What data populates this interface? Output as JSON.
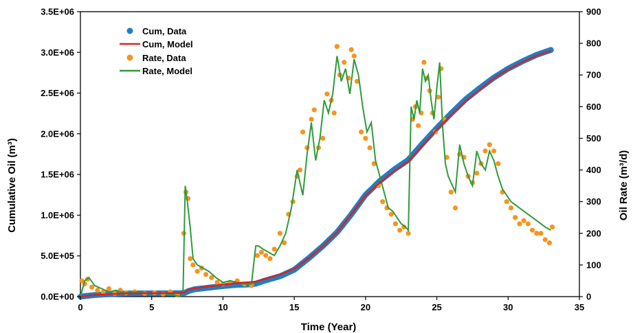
{
  "chart_data": {
    "type": "line",
    "title": "",
    "xlabel": "Time (Year)",
    "ylabel_left": "Cumulative Oil (m³)",
    "ylabel_right": "Oil Rate (m³/d)",
    "xlim": [
      0,
      35
    ],
    "ylim_left": [
      0,
      3500000
    ],
    "ylim_right": [
      0,
      900
    ],
    "x_ticks": [
      "0",
      "5",
      "10",
      "15",
      "20",
      "25",
      "30",
      "35"
    ],
    "y_left_ticks": [
      "0.0E+00",
      "5.0E+05",
      "1.0E+06",
      "1.5E+06",
      "2.0E+06",
      "2.5E+06",
      "3.0E+06",
      "3.5E+06"
    ],
    "y_right_ticks": [
      "0",
      "100",
      "200",
      "300",
      "400",
      "500",
      "600",
      "700",
      "800",
      "900"
    ],
    "grid": false,
    "legend_position": "top-left",
    "colors": {
      "cum_data": "#1f7fc4",
      "cum_model": "#e02020",
      "rate_data": "#f7941d",
      "rate_model": "#2e9a3a"
    },
    "series": [
      {
        "name": "Cum, Data",
        "axis": "left",
        "style": "thick-points",
        "x": [
          0,
          1,
          2,
          3,
          4,
          5,
          6,
          7,
          7.3,
          7.6,
          8,
          9,
          10,
          11,
          12,
          12.3,
          13,
          14,
          15,
          16,
          17,
          18,
          19,
          20,
          21,
          22,
          23,
          24,
          25,
          26,
          27,
          28,
          29,
          30,
          31,
          32,
          33
        ],
        "y": [
          0,
          20000,
          30000,
          38000,
          40000,
          40000,
          40000,
          42000,
          45000,
          70000,
          90000,
          110000,
          130000,
          145000,
          150000,
          160000,
          200000,
          250000,
          330000,
          470000,
          620000,
          790000,
          1010000,
          1250000,
          1420000,
          1560000,
          1680000,
          1880000,
          2070000,
          2250000,
          2420000,
          2560000,
          2690000,
          2800000,
          2890000,
          2970000,
          3030000
        ]
      },
      {
        "name": "Cum, Model",
        "axis": "left",
        "style": "line",
        "x": [
          0,
          1,
          2,
          3,
          4,
          5,
          6,
          7,
          7.3,
          7.6,
          8,
          9,
          10,
          11,
          12,
          12.3,
          13,
          14,
          15,
          16,
          17,
          18,
          19,
          20,
          21,
          22,
          23,
          24,
          25,
          26,
          27,
          28,
          29,
          30,
          31,
          32,
          33
        ],
        "y": [
          0,
          20000,
          30000,
          38000,
          40000,
          42000,
          43000,
          45000,
          50000,
          85000,
          100000,
          125000,
          145000,
          165000,
          180000,
          185000,
          220000,
          270000,
          340000,
          470000,
          620000,
          790000,
          1010000,
          1240000,
          1400000,
          1540000,
          1660000,
          1860000,
          2050000,
          2230000,
          2400000,
          2540000,
          2680000,
          2790000,
          2880000,
          2960000,
          3020000
        ]
      },
      {
        "name": "Rate, Data",
        "axis": "right",
        "style": "points",
        "x": [
          0.1,
          0.3,
          0.5,
          0.8,
          1.2,
          1.6,
          2.0,
          2.4,
          2.8,
          3.2,
          3.8,
          4.5,
          5.2,
          5.8,
          6.3,
          6.8,
          7.25,
          7.4,
          7.55,
          7.7,
          7.9,
          8.2,
          8.5,
          8.8,
          9.2,
          9.6,
          10.0,
          10.5,
          11.0,
          11.5,
          12.0,
          12.4,
          12.7,
          13.0,
          13.3,
          13.6,
          14.0,
          14.3,
          14.6,
          14.9,
          15.2,
          15.4,
          15.6,
          15.9,
          16.2,
          16.4,
          16.7,
          17.0,
          17.3,
          17.6,
          17.8,
          18.0,
          18.2,
          18.5,
          18.8,
          19.0,
          19.2,
          19.4,
          19.7,
          20.0,
          20.3,
          20.6,
          20.9,
          21.2,
          21.5,
          21.8,
          22.1,
          22.4,
          22.7,
          23.0,
          23.3,
          23.5,
          23.7,
          23.9,
          24.1,
          24.3,
          24.5,
          24.7,
          24.9,
          25.1,
          25.3,
          25.5,
          25.7,
          26.0,
          26.3,
          26.6,
          26.9,
          27.2,
          27.5,
          27.8,
          28.1,
          28.4,
          28.7,
          29.0,
          29.3,
          29.6,
          29.9,
          30.2,
          30.5,
          30.8,
          31.1,
          31.4,
          31.7,
          32.0,
          32.3,
          32.6,
          32.9,
          33.1
        ],
        "y": [
          50,
          40,
          55,
          30,
          20,
          15,
          25,
          10,
          20,
          12,
          15,
          10,
          12,
          8,
          15,
          5,
          200,
          330,
          310,
          120,
          100,
          80,
          90,
          70,
          60,
          45,
          40,
          45,
          50,
          40,
          35,
          130,
          140,
          130,
          120,
          150,
          200,
          170,
          260,
          300,
          380,
          400,
          520,
          470,
          560,
          590,
          470,
          500,
          640,
          620,
          580,
          790,
          700,
          740,
          690,
          780,
          760,
          680,
          520,
          500,
          470,
          420,
          350,
          300,
          280,
          260,
          230,
          210,
          220,
          200,
          560,
          600,
          540,
          580,
          740,
          690,
          650,
          580,
          520,
          630,
          720,
          560,
          440,
          330,
          280,
          450,
          440,
          380,
          360,
          390,
          420,
          460,
          480,
          460,
          420,
          330,
          300,
          280,
          250,
          230,
          240,
          230,
          210,
          200,
          200,
          180,
          170,
          220
        ]
      },
      {
        "name": "Rate, Model",
        "axis": "right",
        "style": "line",
        "x": [
          0,
          0.3,
          0.6,
          1.0,
          1.5,
          2.0,
          2.5,
          3.0,
          4.0,
          5.0,
          6.0,
          7.0,
          7.2,
          7.35,
          7.5,
          7.7,
          7.9,
          8.2,
          8.6,
          9.0,
          9.5,
          10.0,
          10.5,
          11.0,
          11.5,
          12.0,
          12.3,
          12.5,
          12.8,
          13.2,
          13.6,
          14.0,
          14.4,
          14.8,
          15.2,
          15.6,
          15.9,
          16.2,
          16.5,
          16.8,
          17.1,
          17.4,
          17.7,
          18.0,
          18.3,
          18.6,
          18.9,
          19.2,
          19.5,
          19.8,
          20.1,
          20.4,
          20.7,
          21.0,
          21.3,
          21.6,
          21.9,
          22.2,
          22.5,
          22.8,
          23.0,
          23.2,
          23.4,
          23.6,
          23.8,
          24.0,
          24.2,
          24.4,
          24.6,
          24.8,
          25.0,
          25.2,
          25.4,
          25.6,
          25.8,
          26.0,
          26.3,
          26.6,
          26.9,
          27.2,
          27.5,
          27.8,
          28.1,
          28.4,
          28.7,
          29.0,
          29.3,
          29.6,
          29.9,
          30.2,
          30.5,
          30.8,
          31.1,
          31.4,
          31.7,
          32.0,
          32.3,
          32.6,
          33.0
        ],
        "y": [
          0,
          50,
          60,
          35,
          25,
          15,
          20,
          12,
          15,
          10,
          10,
          0,
          10,
          350,
          300,
          220,
          120,
          100,
          90,
          80,
          60,
          45,
          50,
          45,
          40,
          40,
          160,
          160,
          150,
          140,
          130,
          160,
          200,
          280,
          400,
          320,
          450,
          550,
          430,
          500,
          620,
          580,
          640,
          760,
          680,
          720,
          640,
          750,
          700,
          600,
          520,
          550,
          430,
          380,
          330,
          280,
          270,
          250,
          230,
          220,
          210,
          600,
          560,
          620,
          580,
          720,
          680,
          700,
          620,
          560,
          660,
          740,
          540,
          420,
          380,
          360,
          330,
          480,
          420,
          380,
          350,
          460,
          420,
          400,
          460,
          430,
          380,
          340,
          320,
          300,
          290,
          280,
          270,
          260,
          250,
          240,
          230,
          220,
          210
        ]
      }
    ]
  }
}
